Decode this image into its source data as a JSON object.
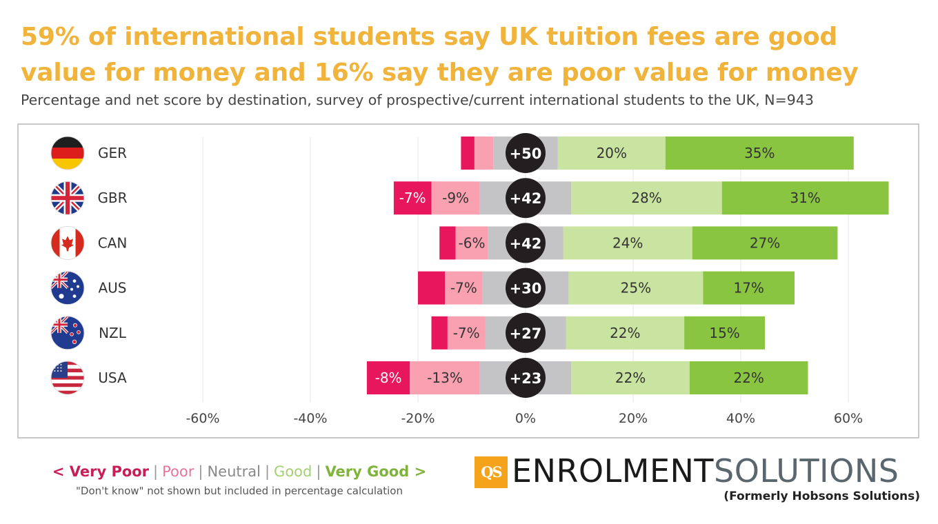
{
  "title": "59% of international students say UK tuition fees are good value for money and 16% say they are poor value for money",
  "subtitle": "Percentage and net score by destination, survey of prospective/current international students to the UK, N=943",
  "legend": {
    "very_poor": "< Very Poor",
    "poor": "Poor",
    "neutral": "Neutral",
    "good": "Good",
    "very_good": "Very Good >",
    "separator": "|",
    "note": "\"Don't know\" not shown but included in percentage calculation"
  },
  "logo": {
    "badge": "QS",
    "name_part1": "ENROLMENT",
    "name_part2": "SOLUTIONS",
    "tagline": "(Formerly Hobsons Solutions)"
  },
  "colors": {
    "very_poor": "#e8175d",
    "poor": "#f9a1b1",
    "neutral": "#c4c4c6",
    "good": "#c9e3a1",
    "very_good": "#89c540",
    "net_badge": "#231f20",
    "title": "#f0b43c",
    "legend_very_poor": "#c81d57",
    "legend_poor": "#e8749a",
    "legend_neutral": "#888888",
    "legend_good": "#a6cf74",
    "legend_very_good": "#7fb33a"
  },
  "chart_data": {
    "type": "bar",
    "orientation": "horizontal-diverging-stacked",
    "categories": [
      "GER",
      "GBR",
      "CAN",
      "AUS",
      "NZL",
      "USA"
    ],
    "flag_icons": [
      "germany-flag-icon",
      "uk-flag-icon",
      "canada-flag-icon",
      "australia-flag-icon",
      "new-zealand-flag-icon",
      "usa-flag-icon"
    ],
    "series": [
      {
        "name": "Very Poor",
        "values": [
          -2.5,
          -7,
          -3,
          -5,
          -3,
          -8
        ]
      },
      {
        "name": "Poor",
        "values": [
          -3.5,
          -9,
          -6,
          -7,
          -7,
          -13
        ]
      },
      {
        "name": "Neutral",
        "values": [
          12,
          17,
          14,
          16,
          15,
          17
        ]
      },
      {
        "name": "Good",
        "values": [
          20,
          28,
          24,
          25,
          22,
          22
        ]
      },
      {
        "name": "Very Good",
        "values": [
          35,
          31,
          27,
          17,
          15,
          22
        ]
      }
    ],
    "segment_labels": [
      [
        "",
        "",
        "20%",
        "35%"
      ],
      [
        "-7%",
        "-9%",
        "28%",
        "31%"
      ],
      [
        "",
        "-6%",
        "24%",
        "27%"
      ],
      [
        "",
        "-7%",
        "25%",
        "17%"
      ],
      [
        "",
        "-7%",
        "22%",
        "15%"
      ],
      [
        "-8%",
        "-13%",
        "22%",
        "22%"
      ]
    ],
    "net_scores": [
      "+50",
      "+42",
      "+42",
      "+30",
      "+27",
      "+23"
    ],
    "xlim": [
      -60,
      60
    ],
    "xticks": [
      -60,
      -40,
      -20,
      0,
      20,
      40,
      60
    ],
    "xtick_labels": [
      "-60%",
      "-40%",
      "-20%",
      "0%",
      "20%",
      "40%",
      "60%"
    ],
    "grid": true
  }
}
